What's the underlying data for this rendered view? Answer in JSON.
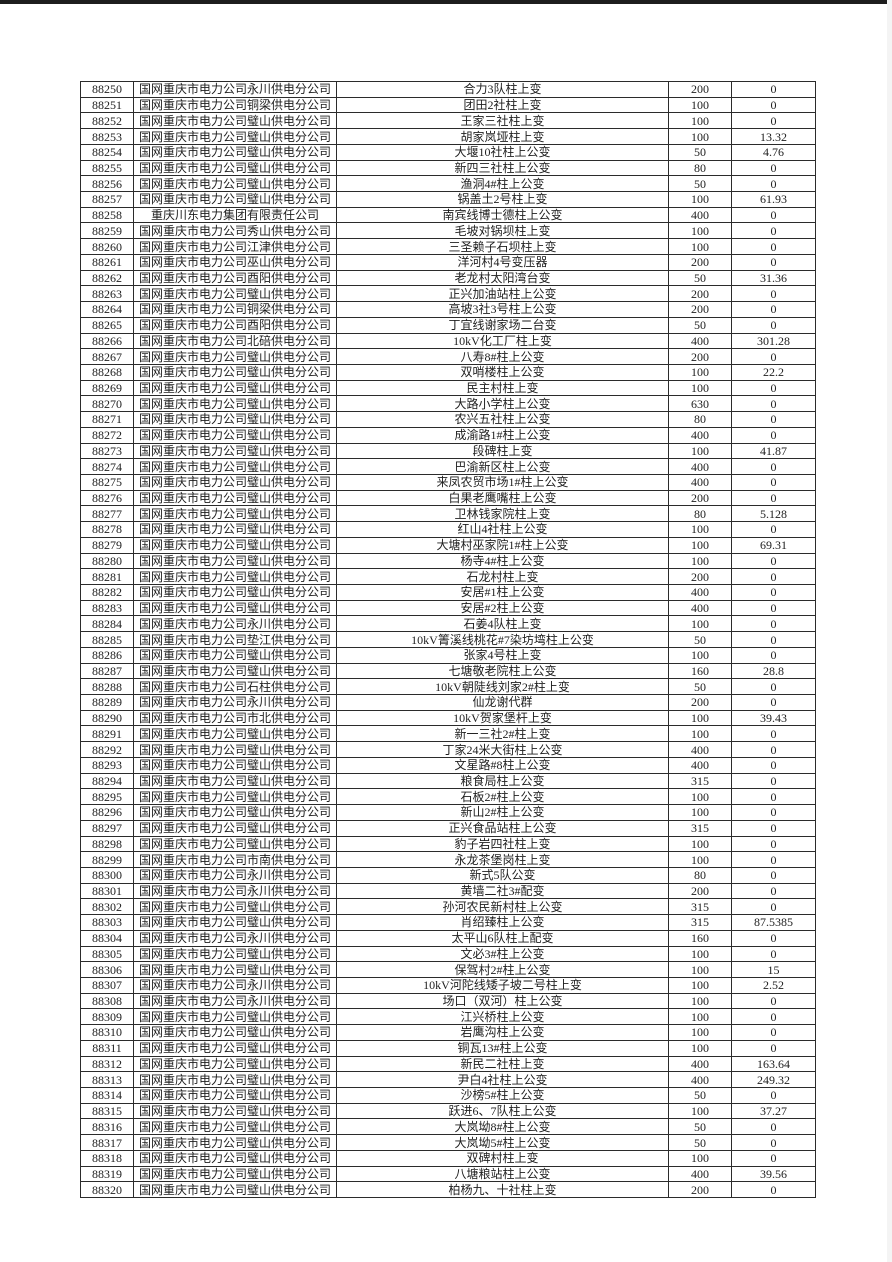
{
  "page": {
    "background_color": "#ffffff",
    "top_bar_color": "#1d1d1d"
  },
  "table": {
    "rows": [
      [
        "88250",
        "国网重庆市电力公司永川供电分公司",
        "合力3队柱上变",
        "200",
        "0"
      ],
      [
        "88251",
        "国网重庆市电力公司铜梁供电分公司",
        "团田2社柱上变",
        "100",
        "0"
      ],
      [
        "88252",
        "国网重庆市电力公司璧山供电分公司",
        "王家三社柱上变",
        "100",
        "0"
      ],
      [
        "88253",
        "国网重庆市电力公司璧山供电分公司",
        "胡家岚垭柱上变",
        "100",
        "13.32"
      ],
      [
        "88254",
        "国网重庆市电力公司璧山供电分公司",
        "大堰10社柱上公变",
        "50",
        "4.76"
      ],
      [
        "88255",
        "国网重庆市电力公司璧山供电分公司",
        "新四三社柱上公变",
        "80",
        "0"
      ],
      [
        "88256",
        "国网重庆市电力公司璧山供电分公司",
        "渔洞4#柱上公变",
        "50",
        "0"
      ],
      [
        "88257",
        "国网重庆市电力公司璧山供电分公司",
        "锅盖土2号柱上变",
        "100",
        "61.93"
      ],
      [
        "88258",
        "重庆川东电力集团有限责任公司",
        "南宾线博士德柱上公变",
        "400",
        "0"
      ],
      [
        "88259",
        "国网重庆市电力公司秀山供电分公司",
        "毛坡对锅坝柱上变",
        "100",
        "0"
      ],
      [
        "88260",
        "国网重庆市电力公司江津供电分公司",
        "三圣赖子石坝柱上变",
        "100",
        "0"
      ],
      [
        "88261",
        "国网重庆市电力公司巫山供电分公司",
        "洋河村4号变压器",
        "200",
        "0"
      ],
      [
        "88262",
        "国网重庆市电力公司酉阳供电分公司",
        "老龙村太阳湾台变",
        "50",
        "31.36"
      ],
      [
        "88263",
        "国网重庆市电力公司璧山供电分公司",
        "正兴加油站柱上公变",
        "200",
        "0"
      ],
      [
        "88264",
        "国网重庆市电力公司铜梁供电分公司",
        "高坡3社3号柱上公变",
        "200",
        "0"
      ],
      [
        "88265",
        "国网重庆市电力公司酉阳供电分公司",
        "丁宜线谢家场二台变",
        "50",
        "0"
      ],
      [
        "88266",
        "国网重庆市电力公司北碚供电分公司",
        "10kV化工厂柱上变",
        "400",
        "301.28"
      ],
      [
        "88267",
        "国网重庆市电力公司璧山供电分公司",
        "八寿8#柱上公变",
        "200",
        "0"
      ],
      [
        "88268",
        "国网重庆市电力公司璧山供电分公司",
        "双哨楼柱上公变",
        "100",
        "22.2"
      ],
      [
        "88269",
        "国网重庆市电力公司璧山供电分公司",
        "民主村柱上变",
        "100",
        "0"
      ],
      [
        "88270",
        "国网重庆市电力公司璧山供电分公司",
        "大路小学柱上公变",
        "630",
        "0"
      ],
      [
        "88271",
        "国网重庆市电力公司璧山供电分公司",
        "农兴五社柱上公变",
        "80",
        "0"
      ],
      [
        "88272",
        "国网重庆市电力公司璧山供电分公司",
        "成渝路1#柱上公变",
        "400",
        "0"
      ],
      [
        "88273",
        "国网重庆市电力公司璧山供电分公司",
        "段碑柱上变",
        "100",
        "41.87"
      ],
      [
        "88274",
        "国网重庆市电力公司璧山供电分公司",
        "巴渝新区柱上公变",
        "400",
        "0"
      ],
      [
        "88275",
        "国网重庆市电力公司璧山供电分公司",
        "来凤农贸市场1#柱上公变",
        "400",
        "0"
      ],
      [
        "88276",
        "国网重庆市电力公司璧山供电分公司",
        "白果老鹰嘴柱上公变",
        "200",
        "0"
      ],
      [
        "88277",
        "国网重庆市电力公司璧山供电分公司",
        "卫林钱家院柱上变",
        "80",
        "5.128"
      ],
      [
        "88278",
        "国网重庆市电力公司璧山供电分公司",
        "红山4社柱上公变",
        "100",
        "0"
      ],
      [
        "88279",
        "国网重庆市电力公司璧山供电分公司",
        "大塘村巫家院1#柱上公变",
        "100",
        "69.31"
      ],
      [
        "88280",
        "国网重庆市电力公司璧山供电分公司",
        "杨寺4#柱上公变",
        "100",
        "0"
      ],
      [
        "88281",
        "国网重庆市电力公司璧山供电分公司",
        "石龙村柱上变",
        "200",
        "0"
      ],
      [
        "88282",
        "国网重庆市电力公司璧山供电分公司",
        "安居#1柱上公变",
        "400",
        "0"
      ],
      [
        "88283",
        "国网重庆市电力公司璧山供电分公司",
        "安居#2柱上公变",
        "400",
        "0"
      ],
      [
        "88284",
        "国网重庆市电力公司永川供电分公司",
        "石姜4队柱上变",
        "100",
        "0"
      ],
      [
        "88285",
        "国网重庆市电力公司垫江供电分公司",
        "10kV箐溪线桃花#7染坊塆柱上公变",
        "50",
        "0"
      ],
      [
        "88286",
        "国网重庆市电力公司璧山供电分公司",
        "张家4号柱上变",
        "100",
        "0"
      ],
      [
        "88287",
        "国网重庆市电力公司璧山供电分公司",
        "七塘敬老院柱上公变",
        "160",
        "28.8"
      ],
      [
        "88288",
        "国网重庆市电力公司石柱供电分公司",
        "10kV朝陡线刘家2#柱上变",
        "50",
        "0"
      ],
      [
        "88289",
        "国网重庆市电力公司永川供电分公司",
        "仙龙谢代群",
        "200",
        "0"
      ],
      [
        "88290",
        "国网重庆市电力公司市北供电分公司",
        "10kV贺家堡杆上变",
        "100",
        "39.43"
      ],
      [
        "88291",
        "国网重庆市电力公司璧山供电分公司",
        "新一三社2#柱上变",
        "100",
        "0"
      ],
      [
        "88292",
        "国网重庆市电力公司璧山供电分公司",
        "丁家24米大街柱上公变",
        "400",
        "0"
      ],
      [
        "88293",
        "国网重庆市电力公司璧山供电分公司",
        "文星路#8柱上公变",
        "400",
        "0"
      ],
      [
        "88294",
        "国网重庆市电力公司璧山供电分公司",
        "粮食局柱上公变",
        "315",
        "0"
      ],
      [
        "88295",
        "国网重庆市电力公司璧山供电分公司",
        "石板2#柱上公变",
        "100",
        "0"
      ],
      [
        "88296",
        "国网重庆市电力公司璧山供电分公司",
        "新山2#柱上公变",
        "100",
        "0"
      ],
      [
        "88297",
        "国网重庆市电力公司璧山供电分公司",
        "正兴食品站柱上公变",
        "315",
        "0"
      ],
      [
        "88298",
        "国网重庆市电力公司璧山供电分公司",
        "豹子岩四社柱上变",
        "100",
        "0"
      ],
      [
        "88299",
        "国网重庆市电力公司市南供电分公司",
        "永龙茶堡岗柱上变",
        "100",
        "0"
      ],
      [
        "88300",
        "国网重庆市电力公司永川供电分公司",
        "新式5队公变",
        "80",
        "0"
      ],
      [
        "88301",
        "国网重庆市电力公司永川供电分公司",
        "黄墙二社3#配变",
        "200",
        "0"
      ],
      [
        "88302",
        "国网重庆市电力公司璧山供电分公司",
        "孙河农民新村柱上公变",
        "315",
        "0"
      ],
      [
        "88303",
        "国网重庆市电力公司璧山供电分公司",
        "肖绍臻柱上公变",
        "315",
        "87.5385"
      ],
      [
        "88304",
        "国网重庆市电力公司永川供电分公司",
        "太平山6队柱上配变",
        "160",
        "0"
      ],
      [
        "88305",
        "国网重庆市电力公司璧山供电分公司",
        "文必3#柱上公变",
        "100",
        "0"
      ],
      [
        "88306",
        "国网重庆市电力公司璧山供电分公司",
        "保驾村2#柱上公变",
        "100",
        "15"
      ],
      [
        "88307",
        "国网重庆市电力公司永川供电分公司",
        "10kV河陀线矮子坡二号柱上变",
        "100",
        "2.52"
      ],
      [
        "88308",
        "国网重庆市电力公司永川供电分公司",
        "场口（双河）柱上公变",
        "100",
        "0"
      ],
      [
        "88309",
        "国网重庆市电力公司璧山供电分公司",
        "江兴桥柱上公变",
        "100",
        "0"
      ],
      [
        "88310",
        "国网重庆市电力公司璧山供电分公司",
        "岩鹰沟柱上公变",
        "100",
        "0"
      ],
      [
        "88311",
        "国网重庆市电力公司璧山供电分公司",
        "铜瓦13#柱上公变",
        "100",
        "0"
      ],
      [
        "88312",
        "国网重庆市电力公司璧山供电分公司",
        "新民二社柱上变",
        "400",
        "163.64"
      ],
      [
        "88313",
        "国网重庆市电力公司璧山供电分公司",
        "尹白4社柱上公变",
        "400",
        "249.32"
      ],
      [
        "88314",
        "国网重庆市电力公司璧山供电分公司",
        "沙榜5#柱上公变",
        "50",
        "0"
      ],
      [
        "88315",
        "国网重庆市电力公司璧山供电分公司",
        "跃进6、7队柱上公变",
        "100",
        "37.27"
      ],
      [
        "88316",
        "国网重庆市电力公司璧山供电分公司",
        "大岚坳8#柱上公变",
        "50",
        "0"
      ],
      [
        "88317",
        "国网重庆市电力公司璧山供电分公司",
        "大岚坳5#柱上公变",
        "50",
        "0"
      ],
      [
        "88318",
        "国网重庆市电力公司璧山供电分公司",
        "双碑村柱上变",
        "100",
        "0"
      ],
      [
        "88319",
        "国网重庆市电力公司璧山供电分公司",
        "八塘粮站柱上公变",
        "400",
        "39.56"
      ],
      [
        "88320",
        "国网重庆市电力公司璧山供电分公司",
        "柏杨九、十社柱上变",
        "200",
        "0"
      ]
    ]
  }
}
